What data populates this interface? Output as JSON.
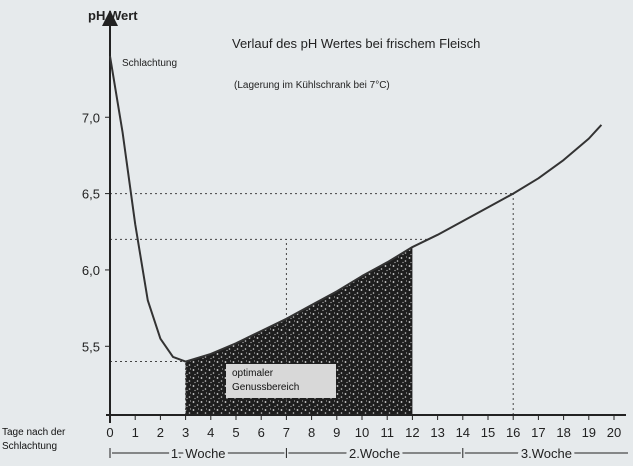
{
  "chart_data": {
    "type": "line",
    "title": "Verlauf des pH Wertes bei frischem Fleisch",
    "subtitle": "(Lagerung im Kühlschrank bei 7°C)",
    "y_label": "pH Wert",
    "x_label": "Tage nach der Schlachtung",
    "annotations": [
      "Schlachtung",
      "optimaler Genussbereich"
    ],
    "weeks": [
      "1. Woche",
      "2.Woche",
      "3.Woche"
    ],
    "x": [
      0,
      0.5,
      1,
      1.5,
      2,
      2.5,
      3,
      4,
      5,
      6,
      7,
      8,
      9,
      10,
      11,
      12,
      13,
      14,
      15,
      16,
      17,
      18,
      19,
      19.5
    ],
    "values": [
      7.4,
      6.9,
      6.3,
      5.8,
      5.55,
      5.43,
      5.4,
      5.45,
      5.52,
      5.6,
      5.68,
      5.77,
      5.86,
      5.96,
      6.05,
      6.15,
      6.23,
      6.32,
      6.41,
      6.5,
      6.6,
      6.72,
      6.86,
      6.95
    ],
    "color": "#333333",
    "shaded_range": [
      3,
      12
    ],
    "hlines": [
      {
        "y": 6.5,
        "x_end": 16
      },
      {
        "y": 6.2,
        "x_end": 12.6
      },
      {
        "y": 5.4,
        "x_end": 3
      }
    ],
    "vlines": [
      {
        "x": 3,
        "y_end": 5.4
      },
      {
        "x": 7,
        "y_end": 6.2
      },
      {
        "x": 16,
        "y_end": 6.5
      }
    ],
    "xlim": [
      0,
      20
    ],
    "xticks": [
      0,
      1,
      2,
      3,
      4,
      5,
      6,
      7,
      8,
      9,
      10,
      11,
      12,
      13,
      14,
      15,
      16,
      17,
      18,
      19,
      20
    ],
    "ylim": [
      5.05,
      7.65
    ],
    "yticks": [
      {
        "value": 5.5,
        "label": "5,5"
      },
      {
        "value": 6.0,
        "label": "6,0"
      },
      {
        "value": 6.5,
        "label": "6,5"
      },
      {
        "value": 7.0,
        "label": "7,0"
      }
    ]
  }
}
